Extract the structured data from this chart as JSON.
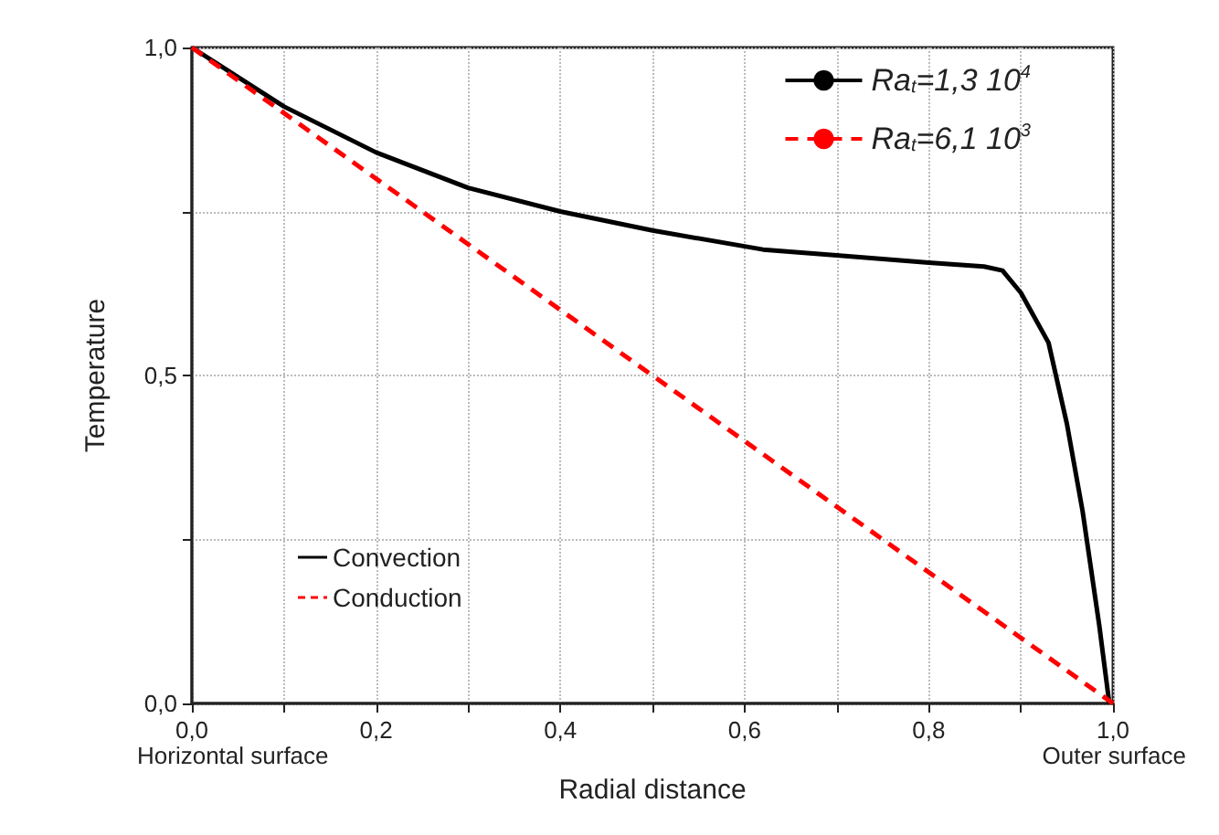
{
  "chart_data": {
    "type": "line",
    "xlabel": "Radial distance",
    "ylabel": "Temperature",
    "xlim": [
      0,
      1
    ],
    "ylim": [
      0,
      1
    ],
    "xticks": [
      {
        "value": 0,
        "label": "0,0"
      },
      {
        "value": 0.1,
        "label": null
      },
      {
        "value": 0.2,
        "label": "0,2"
      },
      {
        "value": 0.3,
        "label": null
      },
      {
        "value": 0.4,
        "label": "0,4"
      },
      {
        "value": 0.5,
        "label": null
      },
      {
        "value": 0.6,
        "label": "0,6"
      },
      {
        "value": 0.7,
        "label": null
      },
      {
        "value": 0.8,
        "label": "0,8"
      },
      {
        "value": 0.9,
        "label": null
      },
      {
        "value": 1,
        "label": "1,0"
      }
    ],
    "yticks": [
      {
        "value": 0,
        "label": "0,0"
      },
      {
        "value": 0.25,
        "label": null
      },
      {
        "value": 0.5,
        "label": "0,5"
      },
      {
        "value": 0.75,
        "label": null
      },
      {
        "value": 1,
        "label": "1,0"
      }
    ],
    "series": [
      {
        "name": "Ra$_{t}$=1,3 10$^{4}$",
        "color": "#000000",
        "line_style": "solid",
        "x": [
          0,
          0.05,
          0.1,
          0.2,
          0.3,
          0.4,
          0.5,
          0.62,
          0.7,
          0.8,
          0.86,
          0.88,
          0.9,
          0.93,
          0.95,
          0.967,
          0.985,
          0.996
        ],
        "values": [
          1,
          0.955,
          0.91,
          0.84,
          0.786,
          0.75,
          0.721,
          0.692,
          0.683,
          0.672,
          0.666,
          0.66,
          0.626,
          0.55,
          0.426,
          0.293,
          0.12,
          0
        ]
      },
      {
        "name": "Ra$_{t}$=6,1 10$^{3}$",
        "color": "#ff0000",
        "line_style": "dashed",
        "x": [
          0,
          1
        ],
        "values": [
          1,
          0
        ]
      }
    ],
    "annotations": [
      "Convection",
      "Conduction",
      "Horizontal surface",
      "Outer surface"
    ],
    "legend": "top right",
    "grid": true,
    "marker": "none"
  }
}
